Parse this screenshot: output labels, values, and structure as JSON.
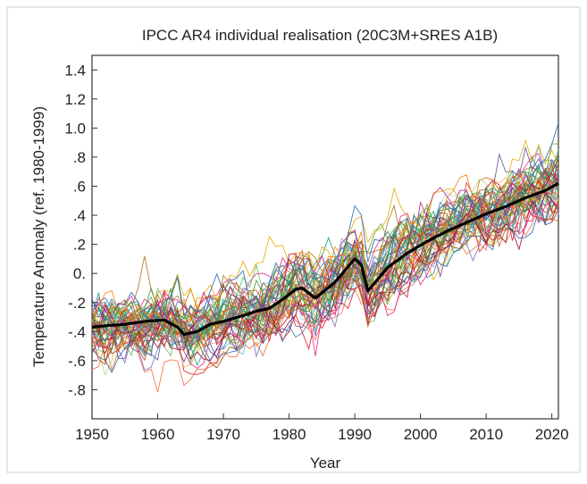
{
  "chart_data": {
    "type": "line",
    "title": "IPCC AR4 individual realisation (20C3M+SRES A1B)",
    "xlabel": "Year",
    "ylabel": "Temperature Anomaly (ref. 1980-1999)",
    "xlim": [
      1950,
      2021
    ],
    "ylim": [
      -1.0,
      1.5
    ],
    "xticks": [
      "1950",
      "1960",
      "1970",
      "1980",
      "1990",
      "2000",
      "2010",
      "2020"
    ],
    "yticks": [
      "1.4",
      "1.2",
      "1.0",
      ".8",
      ".6",
      ".4",
      ".2",
      "0.",
      "-.2",
      "-.4",
      "-.6",
      "-.8"
    ],
    "grid": false,
    "legend": "none",
    "realisation_count": 55,
    "realisation_seed": 20,
    "mean_color": "#000000",
    "realisation_colors": [
      "#d73027",
      "#1a9850",
      "#4575b4",
      "#f46d43",
      "#66bd63",
      "#74add1",
      "#fdae61",
      "#a6d96a",
      "#abd9e9",
      "#9e0142",
      "#5e4fa2",
      "#e6ab02",
      "#e7298a",
      "#66a61e",
      "#7570b3",
      "#d95f02",
      "#1b9e77",
      "#a6761d",
      "#8c510a",
      "#35978f",
      "#c51b7d",
      "#4d9221",
      "#2166ac",
      "#b2182b",
      "#ff7f00",
      "#33a02c",
      "#1f78b4",
      "#e31a1c",
      "#6a3d9a",
      "#b15928"
    ],
    "mean_series": {
      "x": [
        1950,
        1952,
        1955,
        1958,
        1961,
        1963,
        1964,
        1966,
        1968,
        1970,
        1973,
        1975,
        1977,
        1979,
        1981,
        1982,
        1984,
        1987,
        1990,
        1991,
        1992,
        1995,
        1998,
        2001,
        2004,
        2007,
        2010,
        2013,
        2016,
        2019,
        2021
      ],
      "y": [
        -0.37,
        -0.36,
        -0.35,
        -0.33,
        -0.32,
        -0.37,
        -0.42,
        -0.4,
        -0.35,
        -0.33,
        -0.29,
        -0.26,
        -0.24,
        -0.18,
        -0.11,
        -0.1,
        -0.17,
        -0.06,
        0.1,
        0.06,
        -0.12,
        0.04,
        0.14,
        0.22,
        0.29,
        0.35,
        0.41,
        0.46,
        0.52,
        0.57,
        0.62
      ]
    }
  }
}
